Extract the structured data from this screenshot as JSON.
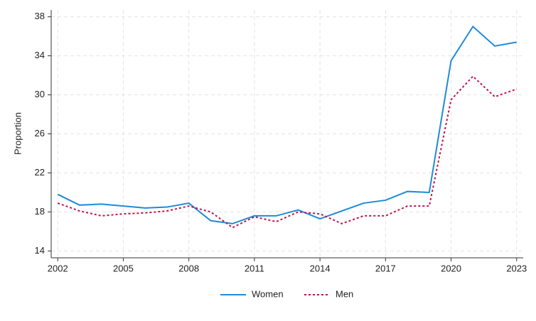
{
  "chart_data": {
    "type": "line",
    "y_label": "Proportion",
    "x": [
      2002,
      2003,
      2004,
      2005,
      2006,
      2007,
      2008,
      2009,
      2010,
      2011,
      2012,
      2013,
      2014,
      2015,
      2016,
      2017,
      2018,
      2019,
      2020,
      2021,
      2022,
      2023
    ],
    "series": [
      {
        "name": "Women",
        "color": "#1f8ad8",
        "line_style": "solid",
        "values": [
          19.8,
          18.7,
          18.8,
          18.6,
          18.4,
          18.5,
          18.9,
          17.1,
          16.8,
          17.6,
          17.6,
          18.2,
          17.3,
          18.1,
          18.9,
          19.2,
          20.1,
          20.0,
          33.5,
          37.0,
          35.0,
          35.4
        ]
      },
      {
        "name": "Men",
        "color": "#c0144a",
        "line_style": "dotted",
        "values": [
          18.9,
          18.1,
          17.6,
          17.8,
          17.9,
          18.1,
          18.6,
          18.0,
          16.4,
          17.5,
          17.0,
          18.0,
          17.8,
          16.8,
          17.6,
          17.6,
          18.6,
          18.6,
          29.5,
          31.9,
          29.8,
          30.6
        ]
      }
    ],
    "xlim": [
      2001.7,
      2023.3
    ],
    "xticks": [
      2002,
      2005,
      2008,
      2011,
      2014,
      2017,
      2020,
      2023
    ],
    "ylim": [
      13.3,
      38.7
    ],
    "yticks": [
      14,
      18,
      22,
      26,
      30,
      34,
      38
    ],
    "grid": true,
    "legend": "bottom"
  }
}
